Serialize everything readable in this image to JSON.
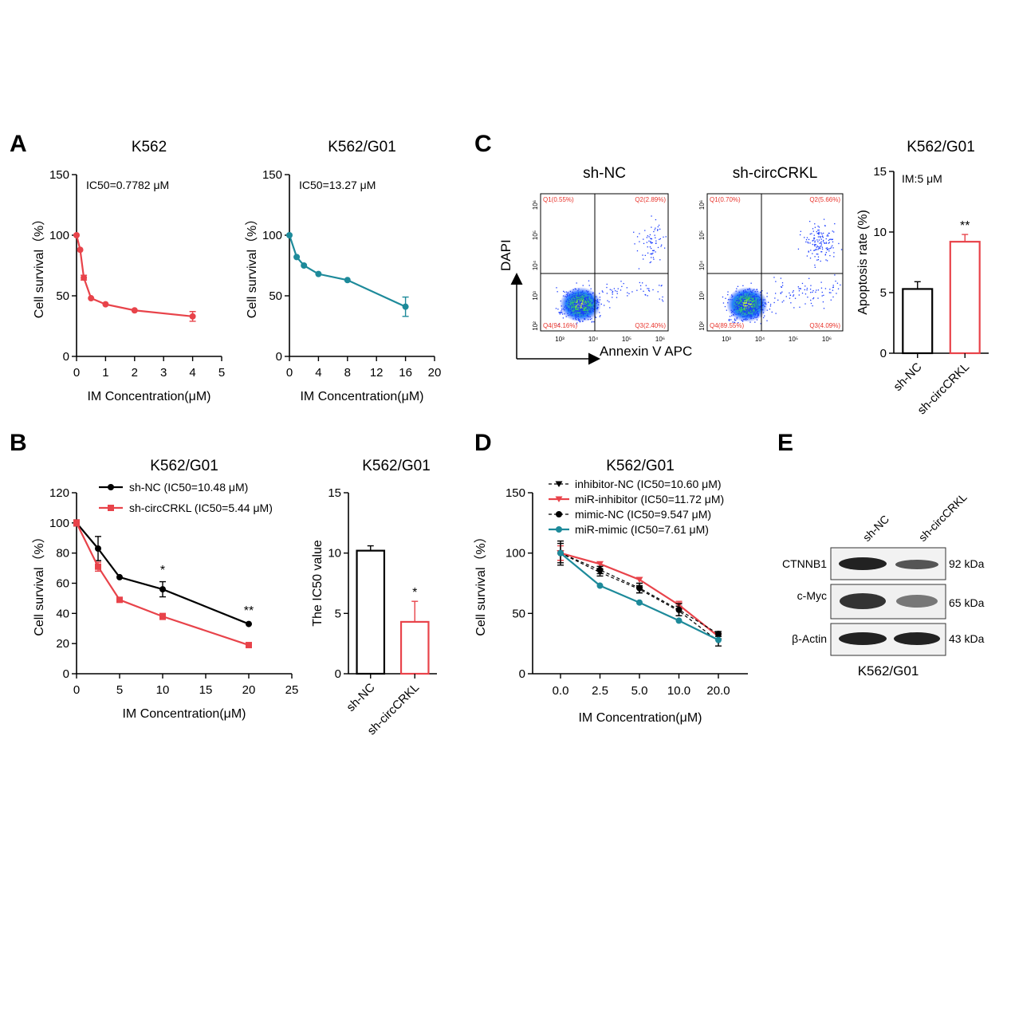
{
  "panels": {
    "A": "A",
    "B": "B",
    "C": "C",
    "D": "D",
    "E": "E"
  },
  "chart_data": [
    {
      "id": "A1",
      "type": "line",
      "title": "K562",
      "xlabel": "IM Concentration(μM)",
      "ylabel": "Cell survival（%）",
      "annotation": "IC50=0.7782 μM",
      "xlim": [
        0,
        5
      ],
      "ylim": [
        0,
        150
      ],
      "xticks": [
        "0",
        "1",
        "2",
        "3",
        "4",
        "5"
      ],
      "yticks": [
        "0",
        "50",
        "100",
        "150"
      ],
      "color": "#e8434a",
      "series": [
        {
          "x": [
            0,
            0.125,
            0.25,
            0.5,
            1,
            2,
            4
          ],
          "y": [
            100,
            88,
            65,
            48,
            43,
            38,
            33
          ],
          "err": [
            0,
            0,
            2,
            0,
            0,
            0,
            4
          ]
        }
      ]
    },
    {
      "id": "A2",
      "type": "line",
      "title": "K562/G01",
      "xlabel": "IM Concentration(μM)",
      "ylabel": "Cell survival（%）",
      "annotation": "IC50=13.27 μM",
      "xlim": [
        0,
        20
      ],
      "ylim": [
        0,
        150
      ],
      "xticks": [
        "0",
        "4",
        "8",
        "12",
        "16",
        "20"
      ],
      "yticks": [
        "0",
        "50",
        "100",
        "150"
      ],
      "color": "#1d8a9a",
      "series": [
        {
          "x": [
            0,
            1,
            2,
            4,
            8,
            16
          ],
          "y": [
            100,
            82,
            75,
            68,
            63,
            41
          ],
          "err": [
            0,
            0,
            0,
            0,
            0,
            8
          ]
        }
      ]
    },
    {
      "id": "B1",
      "type": "line",
      "title": "K562/G01",
      "xlabel": "IM Concentration(μM)",
      "ylabel": "Cell survival（%）",
      "xlim": [
        0,
        25
      ],
      "ylim": [
        0,
        120
      ],
      "xticks": [
        "0",
        "5",
        "10",
        "15",
        "20",
        "25"
      ],
      "yticks": [
        "0",
        "20",
        "40",
        "60",
        "80",
        "100",
        "120"
      ],
      "series": [
        {
          "name": "sh-NC (IC50=10.48 μM)",
          "color": "#000000",
          "marker": "circle",
          "x": [
            0,
            2.5,
            5,
            10,
            20
          ],
          "y": [
            100,
            83,
            64,
            56,
            33
          ],
          "err": [
            2,
            8,
            0,
            5,
            0
          ]
        },
        {
          "name": "sh-circCRKL (IC50=5.44 μM)",
          "color": "#e8434a",
          "marker": "square",
          "x": [
            0,
            2.5,
            5,
            10,
            20
          ],
          "y": [
            100,
            71,
            49,
            38,
            19
          ],
          "err": [
            2,
            3,
            0,
            2,
            0
          ]
        }
      ],
      "annotations": [
        {
          "x": 10,
          "y": 66,
          "text": "*"
        },
        {
          "x": 20,
          "y": 39,
          "text": "**"
        }
      ]
    },
    {
      "id": "B2",
      "type": "bar",
      "title": "K562/G01",
      "ylabel": "The IC50 value",
      "ylim": [
        0,
        15
      ],
      "yticks": [
        "0",
        "5",
        "10",
        "15"
      ],
      "categories": [
        "sh-NC",
        "sh-circCRKL"
      ],
      "values": [
        10.2,
        4.3
      ],
      "err": [
        0.4,
        1.7
      ],
      "colors": [
        "#000000",
        "#e8434a"
      ],
      "annotations": [
        {
          "index": 1,
          "text": "*"
        }
      ]
    },
    {
      "id": "C1",
      "type": "scatter",
      "title": "sh-NC",
      "xlabel": "Annexin V APC",
      "ylabel": "DAPI",
      "quadrants": [
        "Q1(0.55%)",
        "Q2(2.89%)",
        "Q3(2.40%)",
        "Q4(94.16%)"
      ],
      "xticks": [
        "10³",
        "10⁴",
        "10⁵",
        "10⁶"
      ],
      "yticks": [
        "10²",
        "10³",
        "10⁴",
        "10⁵",
        "10⁶"
      ]
    },
    {
      "id": "C2",
      "type": "scatter",
      "title": "sh-circCRKL",
      "quadrants": [
        "Q1(0.70%)",
        "Q2(5.66%)",
        "Q3(4.09%)",
        "Q4(89.55%)"
      ],
      "xticks": [
        "10³",
        "10⁴",
        "10⁵",
        "10⁶"
      ],
      "yticks": [
        "10²",
        "10³",
        "10⁴",
        "10⁵",
        "10⁶"
      ]
    },
    {
      "id": "C3",
      "type": "bar",
      "title": "K562/G01",
      "ylabel": "Apoptosis rate (%)",
      "annotation": "IM:5 μM",
      "ylim": [
        0,
        15
      ],
      "yticks": [
        "0",
        "5",
        "10",
        "15"
      ],
      "categories": [
        "sh-NC",
        "sh-circCRKL"
      ],
      "values": [
        5.3,
        9.2
      ],
      "err": [
        0.6,
        0.6
      ],
      "colors": [
        "#000000",
        "#e8434a"
      ],
      "annotations": [
        {
          "index": 1,
          "text": "**"
        }
      ]
    },
    {
      "id": "D",
      "type": "line",
      "title": "K562/G01",
      "xlabel": "IM Concentration(μM)",
      "ylabel": "Cell survival（%）",
      "ylim": [
        0,
        150
      ],
      "yticks": [
        "0",
        "50",
        "100",
        "150"
      ],
      "categories": [
        "0.0",
        "2.5",
        "5.0",
        "10.0",
        "20.0"
      ],
      "series": [
        {
          "name": "inhibitor-NC (IC50=10.60 μM)",
          "color": "#000000",
          "dash": true,
          "marker": "triangle-down",
          "y": [
            100,
            84,
            70,
            52,
            27
          ],
          "err": [
            8,
            3,
            3,
            4,
            4
          ]
        },
        {
          "name": "miR-inhibitor (IC50=11.72 μM)",
          "color": "#e8434a",
          "dash": false,
          "marker": "triangle-down",
          "y": [
            100,
            91,
            78,
            57,
            31
          ],
          "err": [
            6,
            0,
            0,
            3,
            0
          ]
        },
        {
          "name": "mimic-NC (IC50=9.547 μM)",
          "color": "#000000",
          "dash": true,
          "marker": "circle",
          "y": [
            100,
            86,
            71,
            53,
            33
          ],
          "err": [
            10,
            3,
            4,
            5,
            2
          ]
        },
        {
          "name": "miR-mimic (IC50=7.61 μM)",
          "color": "#1d8a9a",
          "dash": false,
          "marker": "circle",
          "y": [
            100,
            73,
            59,
            44,
            28
          ],
          "err": [
            0,
            0,
            0,
            0,
            0
          ]
        }
      ]
    }
  ],
  "blot": {
    "lanes": [
      "sh-NC",
      "sh-circCRKL"
    ],
    "rows": [
      {
        "protein": "CTNNB1",
        "size": "92 kDa"
      },
      {
        "protein": "c-Myc",
        "size": "65 kDa"
      },
      {
        "protein": "β-Actin",
        "size": "43 kDa"
      }
    ],
    "caption": "K562/G01"
  }
}
